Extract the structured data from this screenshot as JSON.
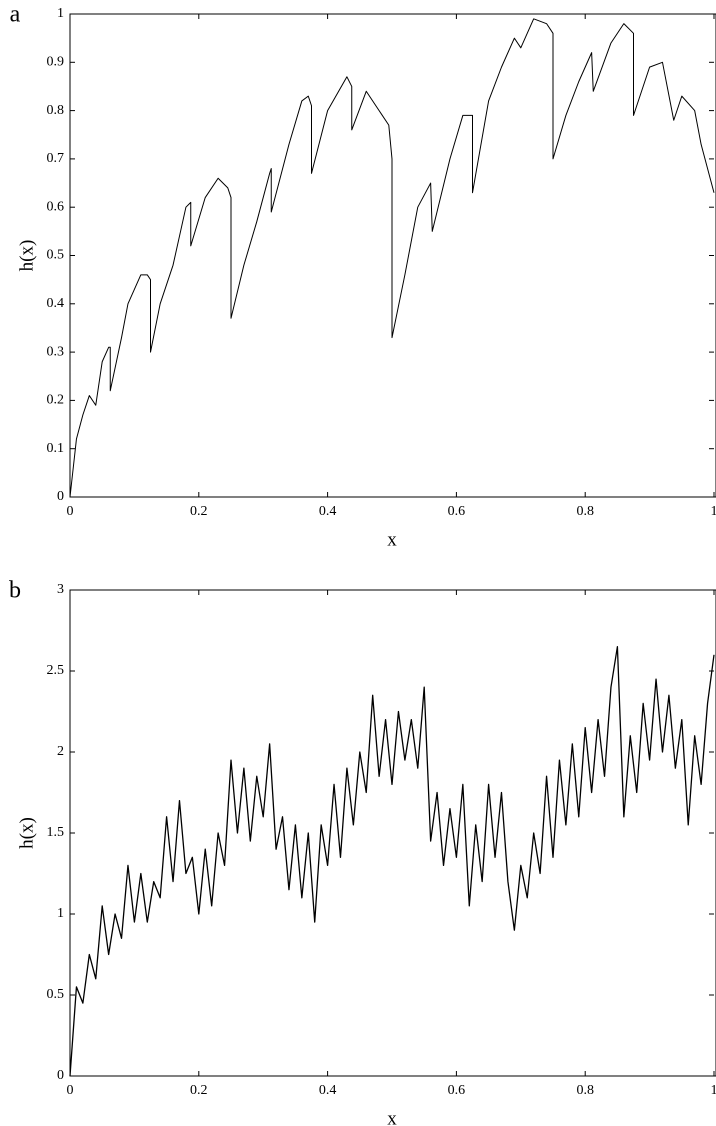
{
  "chart_data": [
    {
      "type": "line",
      "label": "a",
      "xlabel": "x",
      "ylabel": "h(x)",
      "color": "#000000",
      "xlim": [
        0,
        1
      ],
      "ylim": [
        0,
        1
      ],
      "xticks": [
        0,
        0.2,
        0.4,
        0.6,
        0.8,
        1
      ],
      "yticks": [
        0,
        0.1,
        0.2,
        0.3,
        0.4,
        0.5,
        0.6,
        0.7,
        0.8,
        0.9,
        1
      ],
      "x": [
        0,
        0.01,
        0.02,
        0.03,
        0.04,
        0.05,
        0.06,
        0.0625,
        0.0625,
        0.08,
        0.09,
        0.1,
        0.11,
        0.12,
        0.125,
        0.125,
        0.14,
        0.16,
        0.18,
        0.1875,
        0.1875,
        0.21,
        0.23,
        0.245,
        0.25,
        0.25,
        0.27,
        0.29,
        0.31,
        0.3125,
        0.3125,
        0.34,
        0.36,
        0.37,
        0.375,
        0.375,
        0.4,
        0.43,
        0.4375,
        0.4375,
        0.46,
        0.48,
        0.495,
        0.5,
        0.5,
        0.52,
        0.54,
        0.56,
        0.5625,
        0.59,
        0.61,
        0.625,
        0.625,
        0.65,
        0.67,
        0.69,
        0.7,
        0.72,
        0.74,
        0.75,
        0.75,
        0.77,
        0.79,
        0.81,
        0.8125,
        0.84,
        0.86,
        0.875,
        0.875,
        0.9,
        0.92,
        0.9375,
        0.95,
        0.97,
        0.98,
        1
      ],
      "values": [
        0,
        0.12,
        0.17,
        0.21,
        0.19,
        0.28,
        0.31,
        0.31,
        0.22,
        0.33,
        0.4,
        0.43,
        0.46,
        0.46,
        0.45,
        0.3,
        0.4,
        0.48,
        0.6,
        0.61,
        0.52,
        0.62,
        0.66,
        0.64,
        0.62,
        0.37,
        0.48,
        0.57,
        0.67,
        0.68,
        0.59,
        0.73,
        0.82,
        0.83,
        0.81,
        0.67,
        0.8,
        0.87,
        0.85,
        0.76,
        0.84,
        0.8,
        0.77,
        0.7,
        0.33,
        0.46,
        0.6,
        0.65,
        0.55,
        0.7,
        0.79,
        0.79,
        0.63,
        0.82,
        0.89,
        0.95,
        0.93,
        0.99,
        0.98,
        0.96,
        0.7,
        0.79,
        0.86,
        0.92,
        0.84,
        0.94,
        0.98,
        0.96,
        0.79,
        0.89,
        0.9,
        0.78,
        0.83,
        0.8,
        0.73,
        0.63
      ]
    },
    {
      "type": "line",
      "label": "b",
      "xlabel": "x",
      "ylabel": "h(x)",
      "color": "#000000",
      "xlim": [
        0,
        1
      ],
      "ylim": [
        0,
        3
      ],
      "xticks": [
        0,
        0.2,
        0.4,
        0.6,
        0.8,
        1
      ],
      "yticks": [
        0,
        0.5,
        1,
        1.5,
        2,
        2.5,
        3
      ],
      "x": [
        0,
        0.01,
        0.02,
        0.03,
        0.04,
        0.05,
        0.06,
        0.07,
        0.08,
        0.09,
        0.1,
        0.11,
        0.12,
        0.13,
        0.14,
        0.15,
        0.16,
        0.17,
        0.18,
        0.19,
        0.2,
        0.21,
        0.22,
        0.23,
        0.24,
        0.25,
        0.26,
        0.27,
        0.28,
        0.29,
        0.3,
        0.31,
        0.32,
        0.33,
        0.34,
        0.35,
        0.36,
        0.37,
        0.38,
        0.39,
        0.4,
        0.41,
        0.42,
        0.43,
        0.44,
        0.45,
        0.46,
        0.47,
        0.48,
        0.49,
        0.5,
        0.51,
        0.52,
        0.53,
        0.54,
        0.55,
        0.56,
        0.57,
        0.58,
        0.59,
        0.6,
        0.61,
        0.62,
        0.63,
        0.64,
        0.65,
        0.66,
        0.67,
        0.68,
        0.69,
        0.7,
        0.71,
        0.72,
        0.73,
        0.74,
        0.75,
        0.76,
        0.77,
        0.78,
        0.79,
        0.8,
        0.81,
        0.82,
        0.83,
        0.84,
        0.85,
        0.86,
        0.87,
        0.88,
        0.89,
        0.9,
        0.91,
        0.92,
        0.93,
        0.94,
        0.95,
        0.96,
        0.97,
        0.98,
        0.99,
        1
      ],
      "values": [
        0,
        0.55,
        0.45,
        0.75,
        0.6,
        1.05,
        0.75,
        1.0,
        0.85,
        1.3,
        0.95,
        1.25,
        0.95,
        1.2,
        1.1,
        1.6,
        1.2,
        1.7,
        1.25,
        1.35,
        1.0,
        1.4,
        1.05,
        1.5,
        1.3,
        1.95,
        1.5,
        1.9,
        1.45,
        1.85,
        1.6,
        2.05,
        1.4,
        1.6,
        1.15,
        1.55,
        1.1,
        1.5,
        0.95,
        1.55,
        1.3,
        1.8,
        1.35,
        1.9,
        1.55,
        2.0,
        1.75,
        2.35,
        1.85,
        2.2,
        1.8,
        2.25,
        1.95,
        2.2,
        1.9,
        2.4,
        1.45,
        1.75,
        1.3,
        1.65,
        1.35,
        1.8,
        1.05,
        1.55,
        1.2,
        1.8,
        1.35,
        1.75,
        1.2,
        0.9,
        1.3,
        1.1,
        1.5,
        1.25,
        1.85,
        1.35,
        1.95,
        1.55,
        2.05,
        1.6,
        2.15,
        1.75,
        2.2,
        1.85,
        2.4,
        2.65,
        1.6,
        2.1,
        1.75,
        2.3,
        1.95,
        2.45,
        2.0,
        2.35,
        1.9,
        2.2,
        1.55,
        2.1,
        1.8,
        2.3,
        2.6
      ]
    }
  ]
}
